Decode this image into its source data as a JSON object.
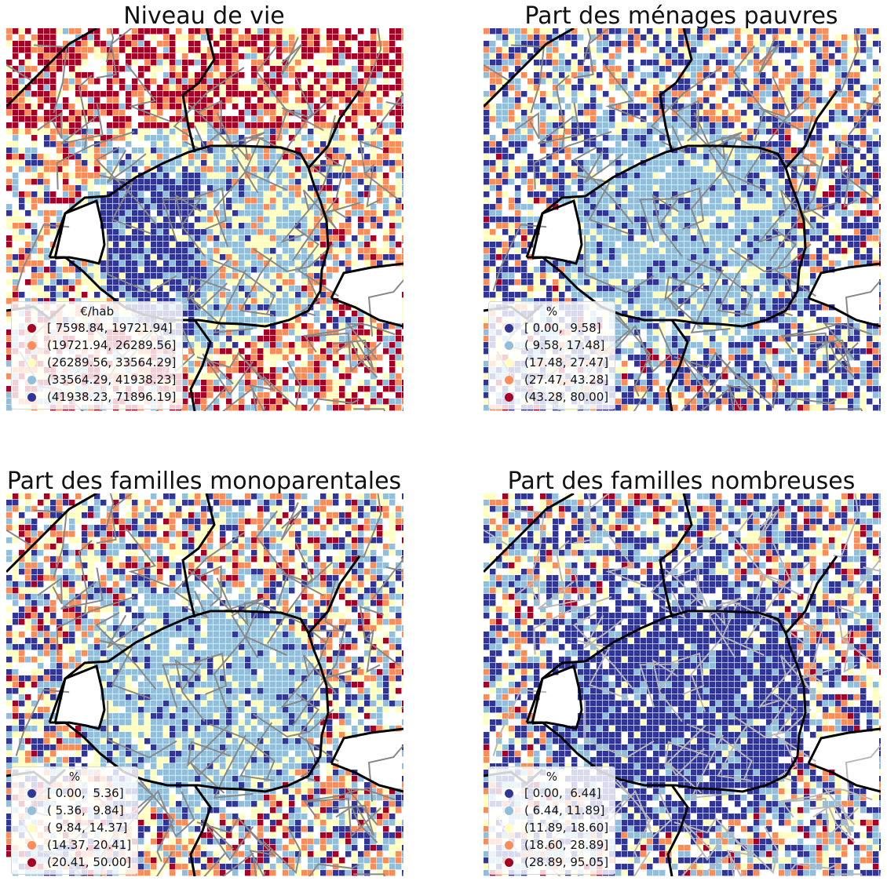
{
  "colors": {
    "blue": "#313695",
    "light_blue": "#91bfdb",
    "yellow": "#ffffbf",
    "orange": "#fc8d59",
    "red": "#a50026",
    "boundary": "#000000",
    "roads": "#888888"
  },
  "maps": [
    {
      "title": "Niveau de vie",
      "legend_title": "€/hab",
      "legend": [
        {
          "label": "[ 7598.84, 19721.94]",
          "color": "#a50026"
        },
        {
          "label": "(19721.94, 26289.56]",
          "color": "#fc8d59"
        },
        {
          "label": "(26289.56, 33564.29]",
          "color": "#ffffbf"
        },
        {
          "label": "(33564.29, 41938.23]",
          "color": "#91bfdb"
        },
        {
          "label": "(41938.23, 71896.19]",
          "color": "#313695"
        }
      ]
    },
    {
      "title": "Part des ménages pauvres",
      "legend_title": "%",
      "legend": [
        {
          "label": "[ 0.00,  9.58]",
          "color": "#313695"
        },
        {
          "label": "( 9.58, 17.48]",
          "color": "#91bfdb"
        },
        {
          "label": "(17.48, 27.47]",
          "color": "#ffffbf"
        },
        {
          "label": "(27.47, 43.28]",
          "color": "#fc8d59"
        },
        {
          "label": "(43.28, 80.00]",
          "color": "#a50026"
        }
      ]
    },
    {
      "title": "Part des familles monoparentales",
      "legend_title": "%",
      "legend": [
        {
          "label": "[ 0.00,  5.36]",
          "color": "#313695"
        },
        {
          "label": "( 5.36,  9.84]",
          "color": "#91bfdb"
        },
        {
          "label": "( 9.84, 14.37]",
          "color": "#ffffbf"
        },
        {
          "label": "(14.37, 20.41]",
          "color": "#fc8d59"
        },
        {
          "label": "(20.41, 50.00]",
          "color": "#a50026"
        }
      ]
    },
    {
      "title": "Part des familles nombreuses",
      "legend_title": "%",
      "legend": [
        {
          "label": "[ 0.00,  6.44]",
          "color": "#313695"
        },
        {
          "label": "( 6.44, 11.89]",
          "color": "#91bfdb"
        },
        {
          "label": "(11.89, 18.60]",
          "color": "#ffffbf"
        },
        {
          "label": "(18.60, 28.89]",
          "color": "#fc8d59"
        },
        {
          "label": "(28.89, 95.05]",
          "color": "#a50026"
        }
      ]
    }
  ]
}
